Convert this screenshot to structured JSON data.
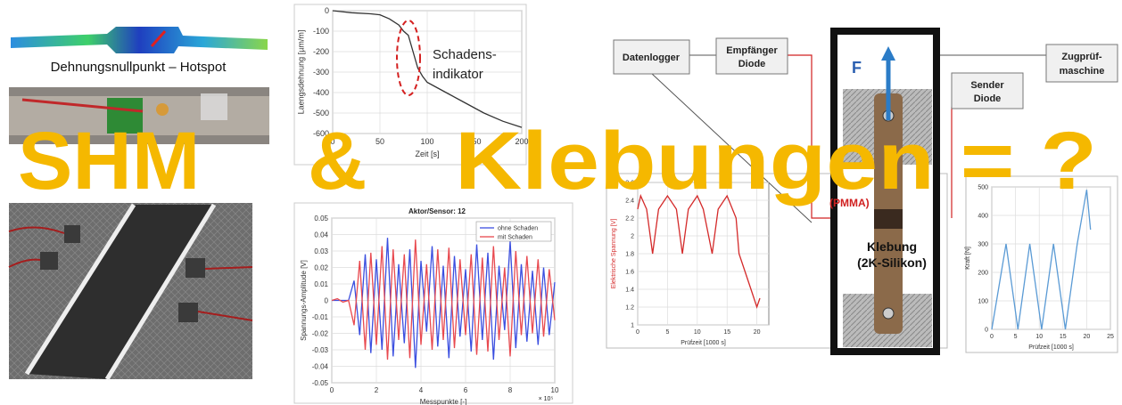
{
  "headline": [
    "SHM",
    "&",
    "Klebungen = ?"
  ],
  "photos": {
    "fe_label": "Dehnungsnullpunkt – Hotspot"
  },
  "strain_chart": {
    "ylabel": "Laengsdehnung [µm/m]",
    "xlabel": "Zeit [s]",
    "annotation": [
      "Schadens-",
      "indikator"
    ],
    "xlim": [
      0,
      200
    ],
    "ylim": [
      -600,
      0
    ],
    "xticks": [
      0,
      50,
      100,
      150,
      200
    ],
    "yticks": [
      -600,
      -500,
      -400,
      -300,
      -200,
      -100,
      0
    ],
    "x": [
      0,
      20,
      40,
      50,
      60,
      70,
      75,
      80,
      85,
      90,
      95,
      100,
      120,
      140,
      160,
      180,
      200
    ],
    "series": [
      {
        "color": "#333333",
        "values": [
          0,
          -10,
          -15,
          -20,
          -40,
          -70,
          -100,
          -120,
          -200,
          -280,
          -320,
          -350,
          -400,
          -450,
          -500,
          -540,
          -570
        ]
      }
    ]
  },
  "signal_chart": {
    "title": "Aktor/Sensor: 12",
    "ylabel": "Spannungs-Amplitude [V]",
    "xlabel": "Messpunkte [-]",
    "x_multiplier": "× 10⁵",
    "xlim": [
      0,
      10
    ],
    "ylim": [
      -0.05,
      0.05
    ],
    "xticks": [
      0,
      2,
      4,
      6,
      8,
      10
    ],
    "yticks": [
      -0.05,
      -0.04,
      -0.03,
      -0.02,
      -0.01,
      0,
      0.01,
      0.02,
      0.03,
      0.04,
      0.05
    ],
    "x": [
      0,
      0.25,
      0.5,
      0.75,
      1,
      1.25,
      1.5,
      1.75,
      2,
      2.25,
      2.5,
      2.75,
      3,
      3.25,
      3.5,
      3.75,
      4,
      4.25,
      4.5,
      4.75,
      5,
      5.25,
      5.5,
      5.75,
      6,
      6.25,
      6.5,
      6.75,
      7,
      7.25,
      7.5,
      7.75,
      8,
      8.25,
      8.5,
      8.75,
      9,
      9.25,
      9.5,
      9.75,
      10
    ],
    "series": [
      {
        "name": "ohne Schaden",
        "color": "#3b4fe0",
        "values": [
          0,
          0,
          0,
          0,
          0.012,
          -0.021,
          0.028,
          -0.032,
          0.025,
          -0.03,
          0.038,
          -0.034,
          0.022,
          -0.026,
          0.031,
          -0.041,
          0.024,
          -0.019,
          0.033,
          -0.028,
          0.021,
          -0.035,
          0.027,
          -0.022,
          0.019,
          -0.031,
          0.034,
          -0.024,
          0.029,
          -0.036,
          0.021,
          -0.018,
          0.036,
          -0.029,
          0.022,
          -0.025,
          0.018,
          -0.027,
          0.02,
          -0.021,
          0.011
        ]
      },
      {
        "name": "mit Schaden",
        "color": "#e8494f",
        "values": [
          0,
          0.001,
          -0.001,
          0,
          -0.015,
          0.024,
          -0.03,
          0.029,
          -0.027,
          0.033,
          -0.036,
          0.031,
          -0.024,
          0.028,
          -0.035,
          0.037,
          -0.027,
          0.022,
          -0.03,
          0.031,
          -0.024,
          0.032,
          -0.029,
          0.025,
          -0.021,
          0.028,
          -0.033,
          0.026,
          -0.031,
          0.033,
          -0.024,
          0.02,
          -0.034,
          0.03,
          -0.021,
          0.027,
          -0.02,
          0.025,
          -0.022,
          0.019,
          -0.012
        ]
      }
    ]
  },
  "setup": {
    "datalogger": "Datenlogger",
    "receiver": [
      "Empfänger",
      "Diode"
    ],
    "sender": [
      "Sender",
      "Diode"
    ],
    "machine": [
      "Zugprüf-",
      "maschine"
    ],
    "force": "F",
    "fiber": "(PMMA)",
    "bond": [
      "Klebung",
      "(2K-Silikon)"
    ]
  },
  "voltage_chart": {
    "ylabel": "Elektrische Spannung [V]",
    "xlabel": "Prüfzeit [1000 s]",
    "xlim": [
      0,
      22
    ],
    "ylim": [
      1,
      2.6
    ],
    "xticks": [
      0,
      5,
      10,
      15,
      20
    ],
    "yticks": [
      1,
      1.2,
      1.4,
      1.6,
      1.8,
      2,
      2.2,
      2.4,
      2.6
    ],
    "x": [
      0,
      0.5,
      1.5,
      2.5,
      3.5,
      5,
      6.5,
      7.5,
      8.5,
      10,
      11,
      12.5,
      13.5,
      15,
      16.5,
      17,
      18,
      19,
      20,
      20.5
    ],
    "series": [
      {
        "color": "#d42a2a",
        "values": [
          2.3,
          2.45,
          2.3,
          1.8,
          2.3,
          2.45,
          2.3,
          1.8,
          2.3,
          2.45,
          2.3,
          1.8,
          2.3,
          2.45,
          2.2,
          1.8,
          1.6,
          1.4,
          1.2,
          1.3
        ]
      }
    ]
  },
  "force_chart": {
    "ylabel": "Kraft [N]",
    "xlabel": "Prüfzeit [1000 s]",
    "xlim": [
      0,
      25
    ],
    "ylim": [
      0,
      500
    ],
    "xticks": [
      0,
      5,
      10,
      15,
      20,
      25
    ],
    "yticks": [
      0,
      100,
      200,
      300,
      400,
      500
    ],
    "x": [
      0,
      3,
      5.5,
      8,
      10.5,
      13,
      15.5,
      18,
      20,
      20.8
    ],
    "series": [
      {
        "color": "#5b9bd5",
        "values": [
          0,
          300,
          0,
          300,
          0,
          300,
          0,
          300,
          490,
          350
        ]
      }
    ]
  }
}
